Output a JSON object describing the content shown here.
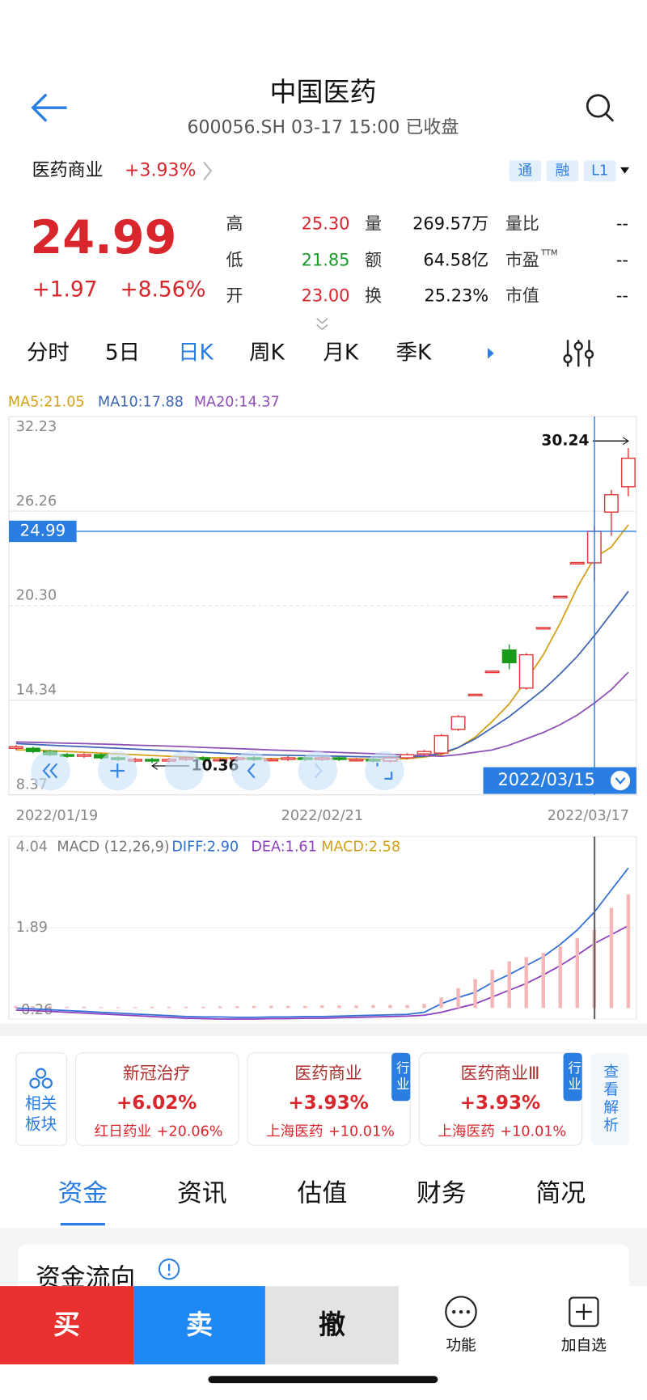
{
  "header": {
    "title": "中国医药",
    "subtitle": "600056.SH 03-17 15:00 已收盘"
  },
  "sector": {
    "name": "医药商业",
    "change": "+3.93%",
    "tags": [
      "通",
      "融",
      "L1"
    ]
  },
  "quote": {
    "price": "24.99",
    "change": "+1.97",
    "change_pct": "+8.56%",
    "stats": [
      {
        "label": "高",
        "value": "25.30",
        "color": "#d8262c"
      },
      {
        "label": "低",
        "value": "21.85",
        "color": "#1a9a2a"
      },
      {
        "label": "开",
        "value": "23.00",
        "color": "#d8262c"
      },
      {
        "label": "量",
        "value": "269.57万",
        "color": "#111111"
      },
      {
        "label": "额",
        "value": "64.58亿",
        "color": "#111111"
      },
      {
        "label": "换",
        "value": "25.23%",
        "color": "#111111"
      },
      {
        "label": "量比",
        "value": "--",
        "color": "#111111"
      },
      {
        "label": "市盈",
        "sup": "TTM",
        "value": "--",
        "color": "#111111"
      },
      {
        "label": "市值",
        "value": "--",
        "color": "#111111"
      }
    ]
  },
  "period_tabs": {
    "items": [
      "分时",
      "5日",
      "日K",
      "周K",
      "月K",
      "季K"
    ],
    "active": 2
  },
  "chart_data": [
    {
      "type": "candlestick",
      "ylim": [
        8.37,
        32.23
      ],
      "yticks": [
        32.23,
        26.26,
        {
          "value": 20.3,
          "label": "20.30"
        },
        14.34,
        8.37
      ],
      "up_color": "#e03a3a",
      "down_color": "#1a9a1a",
      "open": [
        11.3,
        11.3,
        11.1,
        10.9,
        10.8,
        10.9,
        10.7,
        10.5,
        10.6,
        10.5,
        10.6,
        10.7,
        10.6,
        10.6,
        10.7,
        10.6,
        10.6,
        10.7,
        10.6,
        10.7,
        10.6,
        10.6,
        10.5,
        10.7,
        10.95,
        11.0,
        12.5,
        14.71,
        16.17,
        17.5,
        15.1,
        18.92,
        20.89,
        23.02,
        23.0,
        26.2,
        27.8
      ],
      "close": [
        11.4,
        11.1,
        10.9,
        10.8,
        10.9,
        10.7,
        10.6,
        10.6,
        10.5,
        10.6,
        10.7,
        10.6,
        10.6,
        10.7,
        10.6,
        10.6,
        10.7,
        10.6,
        10.7,
        10.6,
        10.6,
        10.5,
        10.7,
        10.9,
        11.1,
        12.1,
        13.3,
        14.71,
        16.17,
        16.7,
        17.2,
        18.92,
        20.89,
        23.02,
        24.99,
        27.3,
        29.6
      ],
      "high": [
        11.5,
        11.4,
        11.2,
        11.0,
        11.0,
        11.0,
        10.8,
        10.7,
        10.7,
        10.7,
        10.8,
        10.8,
        10.7,
        10.8,
        10.8,
        10.7,
        10.8,
        10.8,
        10.8,
        10.8,
        10.7,
        10.7,
        10.8,
        11.0,
        11.2,
        12.2,
        13.4,
        14.71,
        16.17,
        17.86,
        17.3,
        18.92,
        20.89,
        23.02,
        25.3,
        27.6,
        30.24
      ],
      "low": [
        11.2,
        11.0,
        10.8,
        10.7,
        10.7,
        10.6,
        10.5,
        10.4,
        10.36,
        10.4,
        10.5,
        10.5,
        10.5,
        10.5,
        10.5,
        10.5,
        10.5,
        10.5,
        10.5,
        10.5,
        10.5,
        10.4,
        10.4,
        10.6,
        10.85,
        10.9,
        12.4,
        14.71,
        16.17,
        16.28,
        15.0,
        18.92,
        20.89,
        23.02,
        21.85,
        24.7,
        27.2
      ],
      "series": [
        {
          "name": "MA5",
          "legend": "MA5:21.05",
          "color": "#d4a017",
          "values": [
            11.2,
            11.2,
            11.15,
            11.1,
            11.05,
            11.0,
            10.95,
            10.9,
            10.85,
            10.8,
            10.75,
            10.7,
            10.7,
            10.68,
            10.66,
            10.65,
            10.65,
            10.64,
            10.64,
            10.64,
            10.63,
            10.62,
            10.62,
            10.65,
            10.75,
            10.9,
            11.35,
            12.0,
            13.0,
            14.1,
            15.6,
            17.2,
            19.2,
            21.45,
            23.3,
            24.0,
            25.4
          ]
        },
        {
          "name": "MA10",
          "legend": "MA10:17.88",
          "color": "#3d64b5",
          "values": [
            11.6,
            11.55,
            11.5,
            11.45,
            11.4,
            11.35,
            11.3,
            11.25,
            11.2,
            11.15,
            11.1,
            11.05,
            11.0,
            10.95,
            10.9,
            10.88,
            10.86,
            10.84,
            10.82,
            10.8,
            10.78,
            10.76,
            10.75,
            10.75,
            10.8,
            11.0,
            11.35,
            11.9,
            12.6,
            13.3,
            14.15,
            15.0,
            16.0,
            17.1,
            18.4,
            19.8,
            21.2
          ]
        },
        {
          "name": "MA20",
          "legend": "MA20:14.37",
          "color": "#8e4fb5",
          "values": [
            11.7,
            11.68,
            11.65,
            11.62,
            11.6,
            11.57,
            11.54,
            11.5,
            11.47,
            11.44,
            11.4,
            11.36,
            11.32,
            11.28,
            11.24,
            11.2,
            11.16,
            11.12,
            11.08,
            11.04,
            11.0,
            10.96,
            10.92,
            10.88,
            10.84,
            10.8,
            10.9,
            11.05,
            11.2,
            11.5,
            11.9,
            12.3,
            12.8,
            13.4,
            14.15,
            15.0,
            16.1
          ]
        }
      ],
      "last_price": 24.99,
      "high_marker": 30.24,
      "low_marker": 10.36,
      "crosshair_date": "2022/03/15",
      "x_labels": [
        "2022/01/19",
        "2022/02/21",
        "2022/03/17"
      ]
    },
    {
      "type": "macd",
      "title": "MACD (12,26,9)",
      "ylim": [
        -0.26,
        4.04
      ],
      "yticks": [
        4.04,
        1.89,
        -0.26
      ],
      "series": [
        {
          "name": "DIFF",
          "legend": "DIFF:2.90",
          "color": "#2f6fd6",
          "values": [
            0,
            -0.02,
            -0.04,
            -0.06,
            -0.08,
            -0.1,
            -0.12,
            -0.14,
            -0.16,
            -0.18,
            -0.2,
            -0.21,
            -0.21,
            -0.22,
            -0.22,
            -0.21,
            -0.21,
            -0.2,
            -0.2,
            -0.19,
            -0.18,
            -0.17,
            -0.16,
            -0.15,
            -0.1,
            0.1,
            0.25,
            0.37,
            0.6,
            0.79,
            1.0,
            1.21,
            1.5,
            1.84,
            2.26,
            2.78,
            3.3
          ]
        },
        {
          "name": "DEA",
          "legend": "DEA:1.61",
          "color": "#8e3fc0",
          "values": [
            -0.05,
            -0.06,
            -0.08,
            -0.1,
            -0.12,
            -0.14,
            -0.16,
            -0.18,
            -0.2,
            -0.22,
            -0.24,
            -0.25,
            -0.26,
            -0.26,
            -0.26,
            -0.25,
            -0.25,
            -0.24,
            -0.24,
            -0.23,
            -0.22,
            -0.21,
            -0.2,
            -0.19,
            -0.17,
            -0.1,
            0,
            0.1,
            0.26,
            0.42,
            0.58,
            0.78,
            1.0,
            1.25,
            1.52,
            1.73,
            1.94
          ]
        },
        {
          "name": "MACD",
          "legend": "MACD:2.58",
          "color": "#d4a017",
          "bar_color": "#f4b6b6",
          "values": [
            0.05,
            0.04,
            0.04,
            0.03,
            0.03,
            0.02,
            0.02,
            0.02,
            0.03,
            0.03,
            0.03,
            0.03,
            0.04,
            0.04,
            0.05,
            0.05,
            0.05,
            0.05,
            0.06,
            0.06,
            0.06,
            0.07,
            0.07,
            0.07,
            0.1,
            0.25,
            0.47,
            0.68,
            0.9,
            1.1,
            1.2,
            1.3,
            1.45,
            1.65,
            1.84,
            2.36,
            2.68
          ]
        }
      ]
    }
  ],
  "related": {
    "label": [
      "相关",
      "板块"
    ],
    "cards": [
      {
        "name": "新冠治疗",
        "change": "+6.02%",
        "leader": "红日药业",
        "leader_change": "+20.06%"
      },
      {
        "name": "医药商业",
        "change": "+3.93%",
        "leader": "上海医药",
        "leader_change": "+10.01%",
        "tag": "行业"
      },
      {
        "name": "医药商业Ⅲ",
        "change": "+3.93%",
        "leader": "上海医药",
        "leader_change": "+10.01%",
        "tag": "行业"
      }
    ],
    "more": "查看解析"
  },
  "section_tabs": {
    "items": [
      "资金",
      "资讯",
      "估值",
      "财务",
      "简况"
    ],
    "active": 0
  },
  "section": {
    "title": "资金流向"
  },
  "actions": {
    "buy": "买",
    "sell": "卖",
    "cancel": "撤",
    "function": "功能",
    "watch": "加自选"
  }
}
